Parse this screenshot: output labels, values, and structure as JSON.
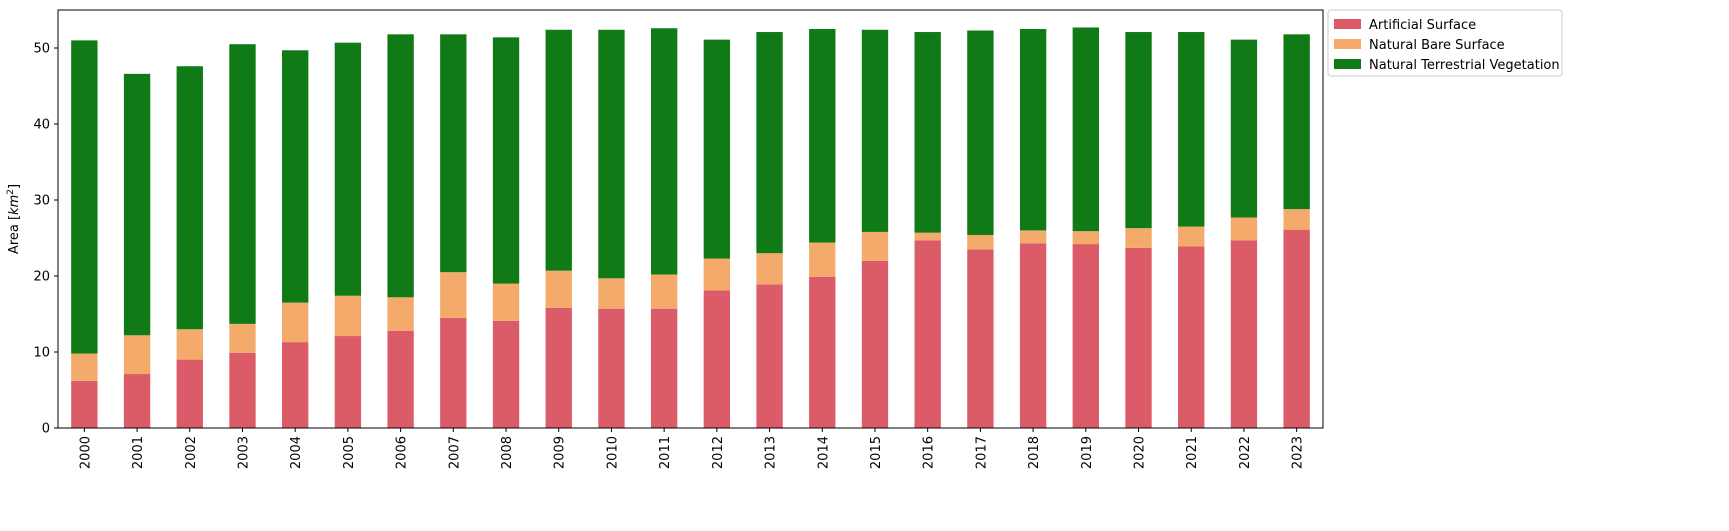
{
  "chart_data": {
    "type": "bar",
    "stacked": true,
    "title": "",
    "xlabel": "",
    "ylabel": "Area [km²]",
    "ylabel_prefix": "Area [",
    "ylabel_unit": "km",
    "ylabel_exp": "2",
    "ylabel_suffix": "]",
    "ylim": [
      0,
      55
    ],
    "yticks": [
      0,
      10,
      20,
      30,
      40,
      50
    ],
    "grid": false,
    "legend_position": "outside-top-right",
    "categories": [
      "2000",
      "2001",
      "2002",
      "2003",
      "2004",
      "2005",
      "2006",
      "2007",
      "2008",
      "2009",
      "2010",
      "2011",
      "2012",
      "2013",
      "2014",
      "2015",
      "2016",
      "2017",
      "2018",
      "2019",
      "2020",
      "2021",
      "2022",
      "2023"
    ],
    "series": [
      {
        "name": "Artificial Surface",
        "color": "#db5c68",
        "values": [
          6.2,
          7.1,
          9.0,
          9.9,
          11.3,
          12.1,
          12.8,
          14.5,
          14.1,
          15.8,
          15.7,
          15.7,
          18.1,
          18.9,
          19.9,
          22.0,
          24.7,
          23.5,
          24.3,
          24.2,
          23.7,
          23.9,
          24.7,
          26.1
        ]
      },
      {
        "name": "Natural Bare Surface",
        "color": "#f3aa6b",
        "values": [
          3.6,
          5.1,
          4.0,
          3.8,
          5.2,
          5.3,
          4.4,
          6.0,
          4.9,
          4.9,
          4.0,
          4.5,
          4.2,
          4.1,
          4.5,
          3.8,
          1.0,
          1.9,
          1.7,
          1.7,
          2.6,
          2.6,
          3.0,
          2.7
        ]
      },
      {
        "name": "Natural Terrestrial Vegetation",
        "color": "#0f7a16",
        "values": [
          41.2,
          34.4,
          34.6,
          36.8,
          33.2,
          33.3,
          34.6,
          31.3,
          32.4,
          31.7,
          32.7,
          32.4,
          28.8,
          29.1,
          28.1,
          26.6,
          26.4,
          26.9,
          26.5,
          26.8,
          25.8,
          25.6,
          23.4,
          23.0
        ]
      }
    ]
  }
}
